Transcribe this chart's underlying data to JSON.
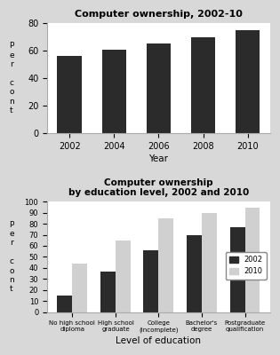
{
  "chart1": {
    "title": "Computer ownership, 2002-10",
    "years": [
      "2002",
      "2004",
      "2006",
      "2008",
      "2010"
    ],
    "values": [
      56,
      61,
      65,
      70,
      75
    ],
    "bar_color": "#2b2b2b",
    "xlabel": "Year",
    "ylabel": "P\ne\nr\n \nc\no\nn\nt",
    "ylim": [
      0,
      80
    ],
    "yticks": [
      0,
      20,
      40,
      60,
      80
    ]
  },
  "chart2": {
    "title": "Computer ownership\nby education level, 2002 and 2010",
    "categories": [
      "No high school\ndiploma",
      "High school\ngraduate",
      "College\n(incomplete)",
      "Bachelor's\ndegree",
      "Postgraduate\nqualification"
    ],
    "values_2002": [
      15,
      37,
      56,
      70,
      77
    ],
    "values_2010": [
      44,
      65,
      85,
      90,
      95
    ],
    "bar_color_2002": "#2b2b2b",
    "bar_color_2010": "#d0d0d0",
    "xlabel": "Level of education",
    "ylabel": "P\ne\nr\n \nc\no\nn\nt",
    "ylim": [
      0,
      100
    ],
    "yticks": [
      0,
      10,
      20,
      30,
      40,
      50,
      60,
      70,
      80,
      90,
      100
    ],
    "legend_2002": "2002",
    "legend_2010": "2010"
  },
  "panel_bg": "#d8d8d8",
  "axes_bg": "#ffffff"
}
